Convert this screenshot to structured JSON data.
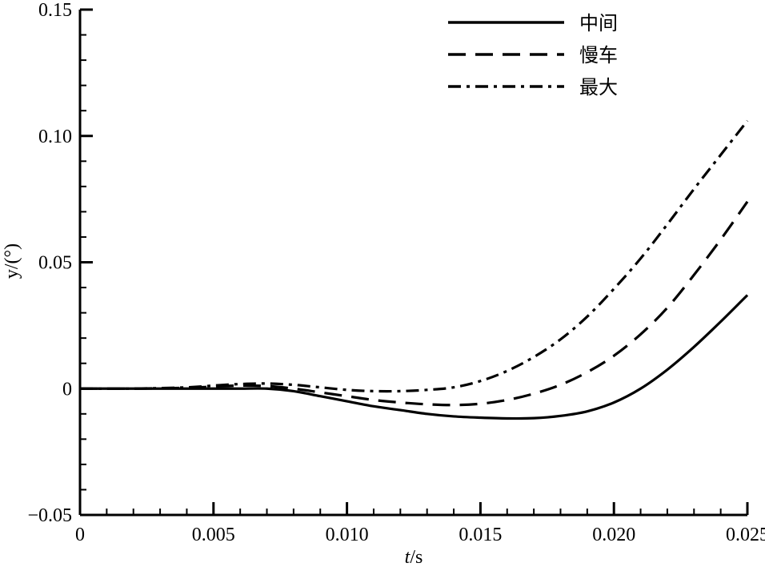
{
  "chart_data": {
    "type": "line",
    "xlabel": "t/s",
    "ylabel": "y/(°)",
    "xlim": [
      0,
      0.025
    ],
    "ylim": [
      -0.05,
      0.15
    ],
    "x_ticks": [
      {
        "value": 0,
        "label": "0"
      },
      {
        "value": 0.005,
        "label": "0.005"
      },
      {
        "value": 0.01,
        "label": "0.010"
      },
      {
        "value": 0.015,
        "label": "0.015"
      },
      {
        "value": 0.02,
        "label": "0.020"
      },
      {
        "value": 0.025,
        "label": "0.025"
      }
    ],
    "y_ticks": [
      {
        "value": -0.05,
        "label": "−0.05"
      },
      {
        "value": 0,
        "label": "0"
      },
      {
        "value": 0.05,
        "label": "0.05"
      },
      {
        "value": 0.1,
        "label": "0.10"
      },
      {
        "value": 0.15,
        "label": "0.15"
      }
    ],
    "grid": false,
    "legend_position": "top-right",
    "series": [
      {
        "name": "中间",
        "style": "solid",
        "color": "#000000",
        "x": [
          0,
          0.002,
          0.004,
          0.005,
          0.006,
          0.007,
          0.008,
          0.009,
          0.01,
          0.011,
          0.012,
          0.013,
          0.014,
          0.015,
          0.016,
          0.017,
          0.018,
          0.019,
          0.02,
          0.021,
          0.022,
          0.023,
          0.024,
          0.025
        ],
        "values": [
          0,
          0,
          0,
          0,
          0,
          0,
          -0.001,
          -0.003,
          -0.005,
          -0.007,
          -0.0085,
          -0.01,
          -0.011,
          -0.0115,
          -0.0118,
          -0.0117,
          -0.0108,
          -0.009,
          -0.0055,
          0.0,
          0.0075,
          0.0165,
          0.0265,
          0.037
        ]
      },
      {
        "name": "慢车",
        "style": "dashed",
        "color": "#000000",
        "x": [
          0,
          0.002,
          0.004,
          0.005,
          0.006,
          0.007,
          0.008,
          0.009,
          0.01,
          0.011,
          0.012,
          0.013,
          0.014,
          0.015,
          0.016,
          0.017,
          0.018,
          0.019,
          0.02,
          0.021,
          0.022,
          0.023,
          0.024,
          0.025
        ],
        "values": [
          0,
          0,
          0.0003,
          0.0008,
          0.0012,
          0.001,
          0.0,
          -0.0015,
          -0.003,
          -0.0045,
          -0.0055,
          -0.0062,
          -0.0065,
          -0.006,
          -0.0045,
          -0.002,
          0.0015,
          0.0065,
          0.013,
          0.0215,
          0.032,
          0.045,
          0.059,
          0.074
        ]
      },
      {
        "name": "最大",
        "style": "dashdot",
        "color": "#000000",
        "x": [
          0,
          0.002,
          0.004,
          0.005,
          0.006,
          0.007,
          0.008,
          0.009,
          0.01,
          0.011,
          0.012,
          0.013,
          0.014,
          0.015,
          0.016,
          0.017,
          0.018,
          0.019,
          0.02,
          0.021,
          0.022,
          0.023,
          0.024,
          0.025
        ],
        "values": [
          0,
          0,
          0.0005,
          0.0012,
          0.0018,
          0.002,
          0.0015,
          0.0005,
          -0.0005,
          -0.001,
          -0.001,
          -0.0005,
          0.0005,
          0.003,
          0.007,
          0.0125,
          0.0195,
          0.0285,
          0.0395,
          0.0515,
          0.065,
          0.079,
          0.0925,
          0.106
        ]
      }
    ]
  }
}
